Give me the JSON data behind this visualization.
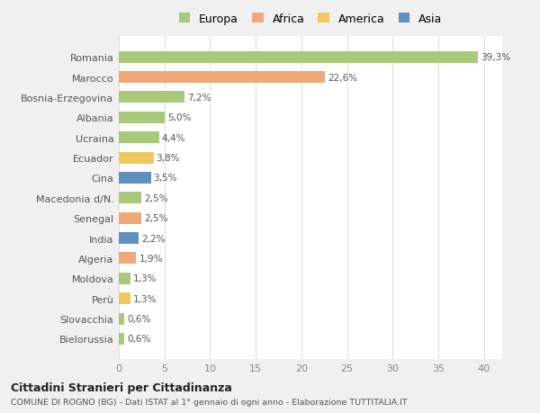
{
  "countries": [
    "Romania",
    "Marocco",
    "Bosnia-Erzegovina",
    "Albania",
    "Ucraina",
    "Ecuador",
    "Cina",
    "Macedonia d/N.",
    "Senegal",
    "India",
    "Algeria",
    "Moldova",
    "Perù",
    "Slovacchia",
    "Bielorussia"
  ],
  "values": [
    39.3,
    22.6,
    7.2,
    5.0,
    4.4,
    3.8,
    3.5,
    2.5,
    2.5,
    2.2,
    1.9,
    1.3,
    1.3,
    0.6,
    0.6
  ],
  "labels": [
    "39,3%",
    "22,6%",
    "7,2%",
    "5,0%",
    "4,4%",
    "3,8%",
    "3,5%",
    "2,5%",
    "2,5%",
    "2,2%",
    "1,9%",
    "1,3%",
    "1,3%",
    "0,6%",
    "0,6%"
  ],
  "continents": [
    "Europa",
    "Africa",
    "Europa",
    "Europa",
    "Europa",
    "America",
    "Asia",
    "Europa",
    "Africa",
    "Asia",
    "Africa",
    "Europa",
    "America",
    "Europa",
    "Europa"
  ],
  "colors": {
    "Europa": "#a8c87a",
    "Africa": "#f0a878",
    "America": "#f0c860",
    "Asia": "#6090c0"
  },
  "legend_order": [
    "Europa",
    "Africa",
    "America",
    "Asia"
  ],
  "title": "Cittadini Stranieri per Cittadinanza",
  "subtitle": "COMUNE DI ROGNO (BG) - Dati ISTAT al 1° gennaio di ogni anno - Elaborazione TUTTITALIA.IT",
  "xlim": [
    0,
    42
  ],
  "xticks": [
    0,
    5,
    10,
    15,
    20,
    25,
    30,
    35,
    40
  ],
  "background_color": "#f0f0f0",
  "bar_area_color": "#ffffff",
  "grid_color": "#dddddd"
}
